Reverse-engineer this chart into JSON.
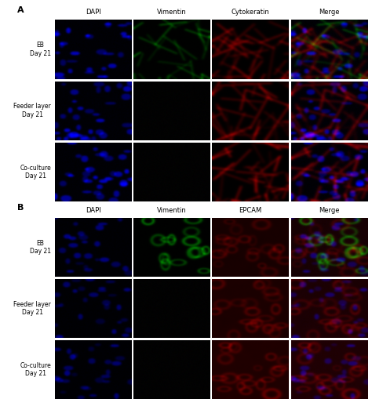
{
  "figure_width": 4.74,
  "figure_height": 5.09,
  "dpi": 100,
  "background_color": "#ffffff",
  "panel_A_label": "A",
  "panel_B_label": "B",
  "col_headers_A": [
    "DAPI",
    "Vimentin",
    "Cytokeratin",
    "Merge"
  ],
  "col_headers_B": [
    "DAPI",
    "Vimentin",
    "EPCAM",
    "Merge"
  ],
  "row_labels": [
    "EB\nDay 21",
    "Feeder layer\nDay 21",
    "Co-culture\nDay 21"
  ],
  "header_fontsize": 6,
  "label_fontsize": 5.5,
  "panel_label_fontsize": 8
}
